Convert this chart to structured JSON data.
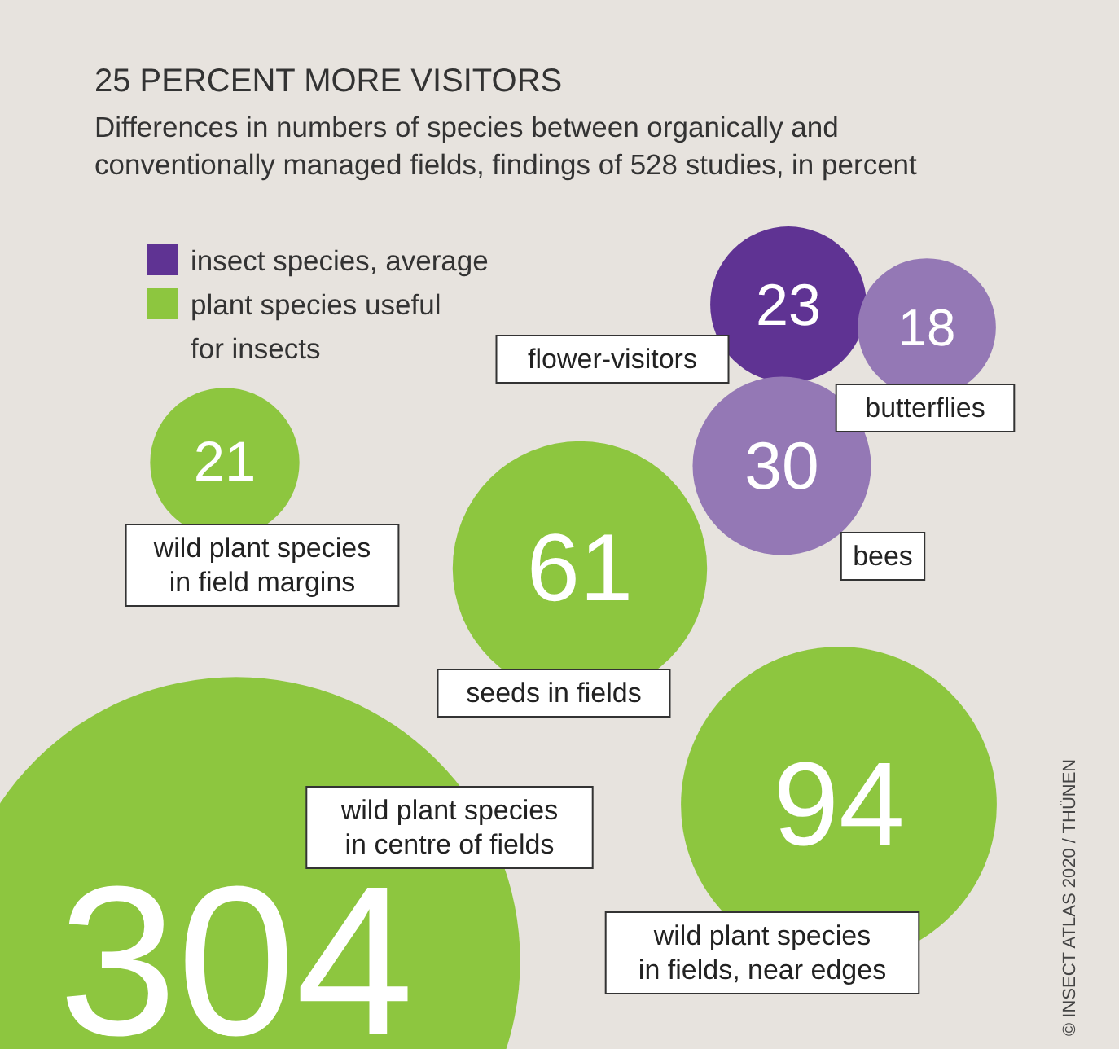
{
  "chart_data": {
    "type": "other",
    "title": "25 PERCENT MORE VISITORS",
    "subtitle": "Differences in numbers of species between organically and conventionally managed fields, findings of 528 studies, in percent",
    "categories": [
      "flower-visitors",
      "butterflies",
      "bees",
      "wild plant species\nin field margins",
      "seeds in fields",
      "wild plant species\nin centre of fields",
      "wild plant species\nin fields, near edges"
    ],
    "series": [
      {
        "name": "insect species, average",
        "color": "#5f3393",
        "colors": [
          "#5f3393",
          "#9478b5",
          "#9478b5",
          null,
          null,
          null,
          null
        ],
        "values": [
          23,
          18,
          30,
          null,
          null,
          null,
          null
        ]
      },
      {
        "name": "plant species useful\nfor insects",
        "color": "#8dc63f",
        "colors": [
          null,
          null,
          null,
          "#8dc63f",
          "#8dc63f",
          "#8dc63f",
          "#8dc63f"
        ],
        "values": [
          null,
          null,
          null,
          21,
          61,
          304,
          94
        ]
      }
    ],
    "data_labels": true,
    "legend": "top left",
    "annotations": [
      "© INSECT ATLAS 2020 / THÜNEN"
    ]
  }
}
